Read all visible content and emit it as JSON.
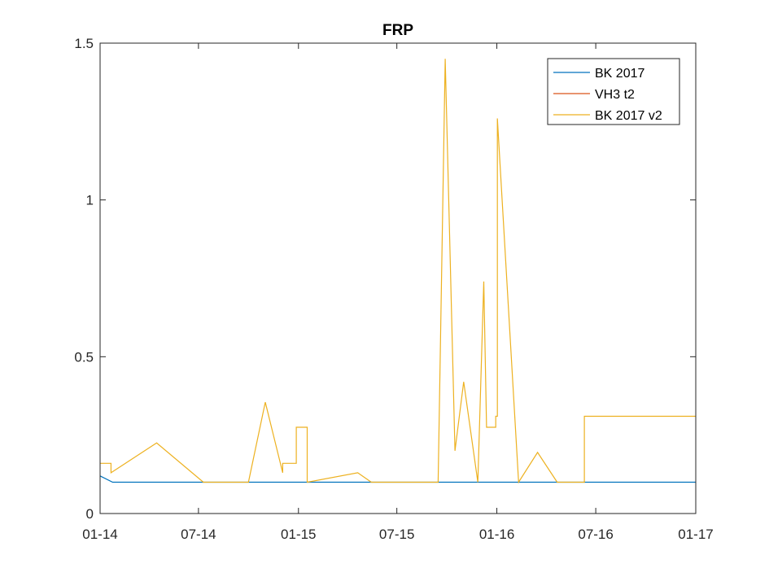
{
  "chart_data": {
    "type": "line",
    "title": "FRP",
    "xlabel": "",
    "ylabel": "",
    "x_tick_labels": [
      "01-14",
      "07-14",
      "01-15",
      "07-15",
      "01-16",
      "07-16",
      "01-17"
    ],
    "x_ticks": [
      "2014-01-01",
      "2014-07-01",
      "2015-01-01",
      "2015-07-01",
      "2016-01-01",
      "2016-07-01",
      "2017-01-01"
    ],
    "xlim": [
      "2014-01-01",
      "2017-01-01"
    ],
    "y_tick_labels": [
      "0",
      "0.5",
      "1",
      "1.5"
    ],
    "y_ticks": [
      0,
      0.5,
      1,
      1.5
    ],
    "ylim": [
      0,
      1.5
    ],
    "grid": false,
    "legend_position": "top-right",
    "series": [
      {
        "name": "BK 2017",
        "color": "#0072BD",
        "points": [
          [
            "2014-01-01",
            0.12
          ],
          [
            "2014-01-24",
            0.1
          ],
          [
            "2017-01-01",
            0.1
          ]
        ]
      },
      {
        "name": "VH3 t2",
        "color": "#D95319",
        "points": []
      },
      {
        "name": "BK 2017 v2",
        "color": "#EDB120",
        "points": [
          [
            "2014-01-01",
            0.16
          ],
          [
            "2014-01-21",
            0.16
          ],
          [
            "2014-01-21",
            0.13
          ],
          [
            "2014-04-15",
            0.225
          ],
          [
            "2014-07-10",
            0.1
          ],
          [
            "2014-10-01",
            0.1
          ],
          [
            "2014-11-01",
            0.355
          ],
          [
            "2014-12-03",
            0.13
          ],
          [
            "2014-12-03",
            0.16
          ],
          [
            "2014-12-28",
            0.16
          ],
          [
            "2014-12-28",
            0.275
          ],
          [
            "2015-01-17",
            0.275
          ],
          [
            "2015-01-17",
            0.1
          ],
          [
            "2015-04-20",
            0.13
          ],
          [
            "2015-05-15",
            0.1
          ],
          [
            "2015-09-15",
            0.1
          ],
          [
            "2015-09-28",
            1.45
          ],
          [
            "2015-10-16",
            0.2
          ],
          [
            "2015-11-01",
            0.42
          ],
          [
            "2015-11-27",
            0.1
          ],
          [
            "2015-12-08",
            0.74
          ],
          [
            "2015-12-13",
            0.275
          ],
          [
            "2015-12-30",
            0.275
          ],
          [
            "2015-12-30",
            0.31
          ],
          [
            "2016-01-02",
            0.31
          ],
          [
            "2016-01-02",
            1.26
          ],
          [
            "2016-02-10",
            0.1
          ],
          [
            "2016-03-16",
            0.195
          ],
          [
            "2016-04-21",
            0.1
          ],
          [
            "2016-06-10",
            0.1
          ],
          [
            "2016-06-10",
            0.31
          ],
          [
            "2017-01-01",
            0.31
          ]
        ]
      }
    ]
  }
}
